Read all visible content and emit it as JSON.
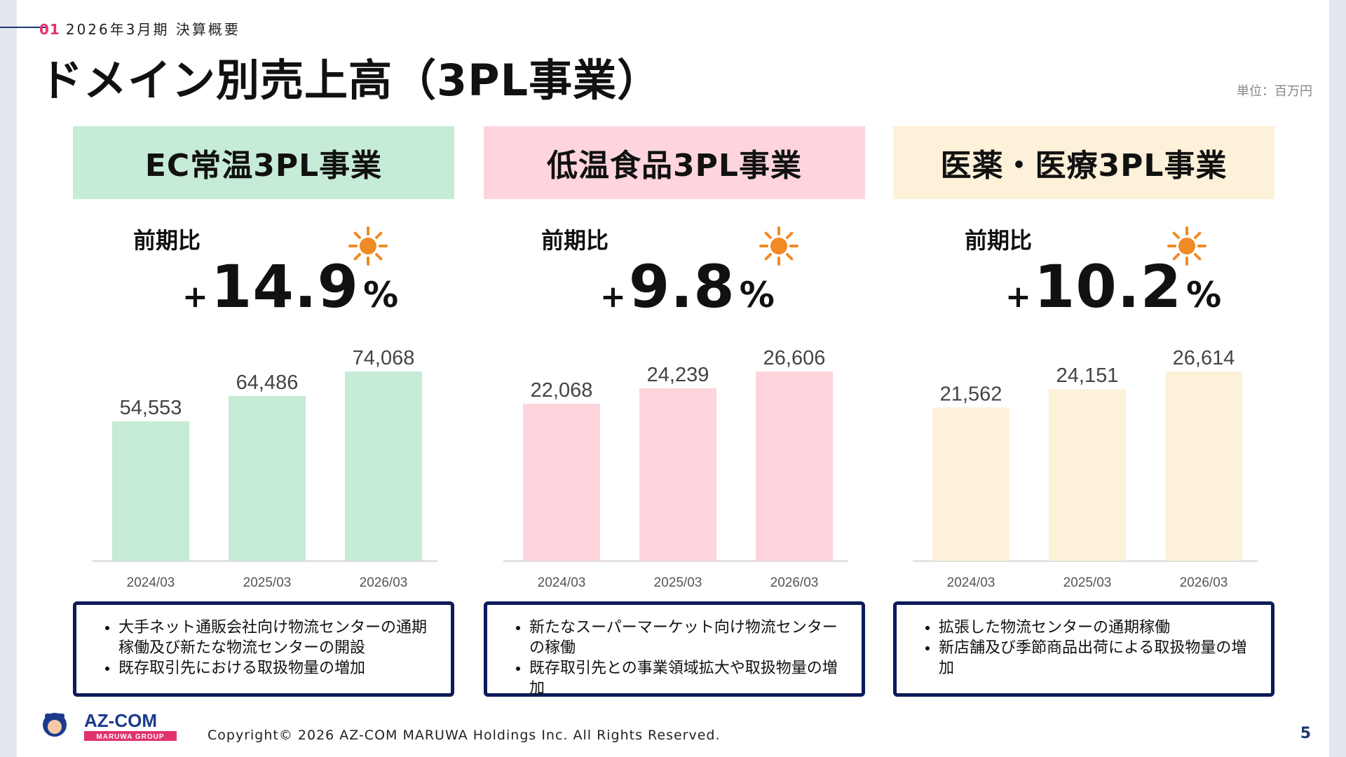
{
  "header": {
    "section_number": "01",
    "section_title": "2026年3月期 決算概要",
    "title": "ドメイン別売上高（3PL事業）",
    "unit_note": "単位：百万円"
  },
  "colors": {
    "accent": "#e0336e",
    "navy": "#0d1b5a",
    "sun": "#f08a24"
  },
  "segments": [
    {
      "name": "EC常温3PL事業",
      "header_color": "#c6ebd6",
      "bar_color": "#c6ebd6",
      "yoy_label": "前期比",
      "yoy_sign": "+",
      "yoy_value": "14.9",
      "yoy_unit": "%",
      "icon": "sun-icon",
      "bullets": [
        "大手ネット通販会社向け物流センターの通期稼働及び新たな物流センターの開設",
        "既存取引先における取扱物量の増加"
      ]
    },
    {
      "name": "低温食品3PL事業",
      "header_color": "#fed5dd",
      "bar_color": "#fed5dd",
      "yoy_label": "前期比",
      "yoy_sign": "+",
      "yoy_value": "9.8",
      "yoy_unit": "%",
      "icon": "sun-icon",
      "bullets": [
        "新たなスーパーマーケット向け物流センターの稼働",
        "既存取引先との事業領域拡大や取扱物量の増加"
      ]
    },
    {
      "name": "医薬・医療3PL事業",
      "header_color": "#fdf1d9",
      "bar_color": "#fdf1d9",
      "yoy_label": "前期比",
      "yoy_sign": "+",
      "yoy_value": "10.2",
      "yoy_unit": "%",
      "icon": "sun-icon",
      "bullets": [
        "拡張した物流センターの通期稼働",
        "新店舗及び季節商品出荷による取扱物量の増加"
      ]
    }
  ],
  "chart_data": [
    {
      "type": "bar",
      "categories": [
        "2024/03",
        "2025/03",
        "2026/03"
      ],
      "values": [
        54553,
        64486,
        74068
      ],
      "value_labels": [
        "54,553",
        "64,486",
        "74,068"
      ],
      "title": "",
      "xlabel": "",
      "ylabel": "",
      "ylim": [
        0,
        74068
      ],
      "grid": false
    },
    {
      "type": "bar",
      "categories": [
        "2024/03",
        "2025/03",
        "2026/03"
      ],
      "values": [
        22068,
        24239,
        26606
      ],
      "value_labels": [
        "22,068",
        "24,239",
        "26,606"
      ],
      "title": "",
      "xlabel": "",
      "ylabel": "",
      "ylim": [
        0,
        26606
      ],
      "grid": false
    },
    {
      "type": "bar",
      "categories": [
        "2024/03",
        "2025/03",
        "2026/03"
      ],
      "values": [
        21562,
        24151,
        26614
      ],
      "value_labels": [
        "21,562",
        "24,151",
        "26,614"
      ],
      "title": "",
      "xlabel": "",
      "ylabel": "",
      "ylim": [
        0,
        26614
      ],
      "grid": false
    }
  ],
  "footer": {
    "logo_text": "AZ-COM",
    "logo_subtext": "MARUWA GROUP",
    "copyright": "Copyright© 2026 AZ-COM MARUWA Holdings Inc. All Rights Reserved.",
    "page_number": "5"
  }
}
